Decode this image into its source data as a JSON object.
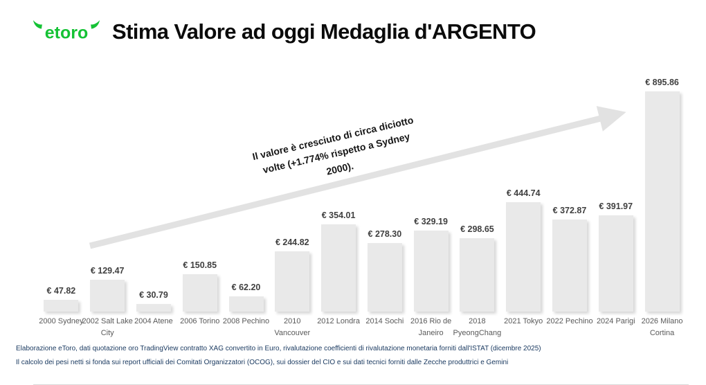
{
  "header": {
    "logo_text": "etoro",
    "logo_color": "#15c235",
    "title": "Stima Valore ad oggi Medaglia d'ARGENTO"
  },
  "annotation": {
    "text": "Il valore è cresciuto di circa diciotto volte (+1.774% rispetto a Sydney 2000)."
  },
  "chart_data": {
    "type": "bar",
    "title": "Stima Valore ad oggi Medaglia d'ARGENTO",
    "currency": "EUR",
    "categories": [
      "2000 Sydney",
      "2002 Salt Lake City",
      "2004 Atene",
      "2006 Torino",
      "2008 Pechino",
      "2010 Vancouver",
      "2012 Londra",
      "2014 Sochi",
      "2016 Rio de Janeiro",
      "2018 PyeongChang",
      "2021 Tokyo",
      "2022 Pechino",
      "2024 Parigi",
      "2026 Milano Cortina"
    ],
    "values": [
      47.82,
      129.47,
      30.79,
      150.85,
      62.2,
      244.82,
      354.01,
      278.3,
      329.19,
      298.65,
      444.74,
      372.87,
      391.97,
      895.86
    ],
    "value_labels": [
      "€ 47.82",
      "€ 129.47",
      "€ 30.79",
      "€ 150.85",
      "€ 62.20",
      "€ 244.82",
      "€ 354.01",
      "€ 278.30",
      "€ 329.19",
      "€ 298.65",
      "€ 444.74",
      "€ 372.87",
      "€ 391.97",
      "€ 895.86"
    ],
    "bar_color": "#e9e9e9",
    "arrow_color": "#e2e2e2",
    "ylim": [
      0,
      900
    ],
    "grid": false,
    "legend": false
  },
  "footer": {
    "line1": "Elaborazione eToro, dati quotazione oro TradingView contratto XAG convertito in Euro, rivalutazione coefficienti di rivalutazione monetaria forniti dall'ISTAT (dicembre 2025)",
    "line2": "Il calcolo dei pesi netti si fonda sui report ufficiali dei Comitati Organizzatori (OCOG), sui dossier del CIO e sui dati tecnici forniti dalle Zecche produttrici e Gemini"
  }
}
